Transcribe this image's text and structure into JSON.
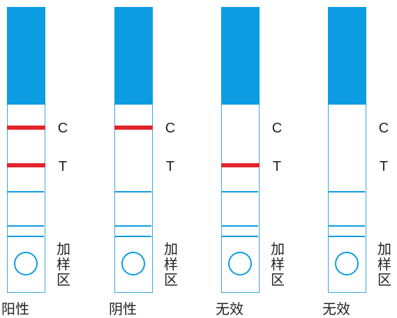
{
  "strips": [
    {
      "result": "阳性",
      "control_line": true,
      "test_line": true
    },
    {
      "result": "阴性",
      "control_line": true,
      "test_line": false
    },
    {
      "result": "无效",
      "control_line": false,
      "test_line": true
    },
    {
      "result": "无效",
      "control_line": false,
      "test_line": false
    }
  ],
  "labels": {
    "control": "C",
    "test": "T",
    "sample_zone": [
      "加",
      "样",
      "区"
    ]
  },
  "colors": {
    "strip_blue": "#0b9ce2",
    "line_red": "#e0242b",
    "text": "#222222"
  }
}
